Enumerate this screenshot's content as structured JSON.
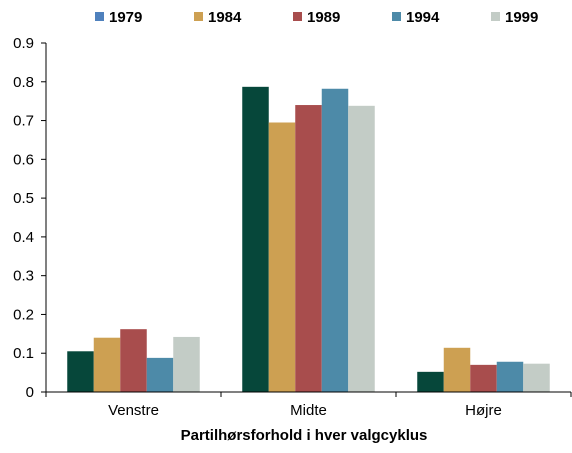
{
  "chart_data": {
    "type": "bar",
    "title": "",
    "xlabel": "Partilhørsforhold i hver valgcyklus",
    "ylabel": "",
    "ylim": [
      0,
      0.9
    ],
    "yticks": [
      "0",
      "0.1",
      "0.2",
      "0.3",
      "0.4",
      "0.5",
      "0.6",
      "0.7",
      "0.8",
      "0.9"
    ],
    "grid": false,
    "legend_position": "top",
    "categories": [
      "Venstre",
      "Midte",
      "Højre"
    ],
    "legend": [
      {
        "name": "1979",
        "color": "#4f81bd"
      },
      {
        "name": "1984",
        "color": "#cda052"
      },
      {
        "name": "1989",
        "color": "#a84d4d"
      },
      {
        "name": "1994",
        "color": "#4d8aa8"
      },
      {
        "name": "1999",
        "color": "#c3ccc6"
      }
    ],
    "series": [
      {
        "name": "1979",
        "color": "#06473a",
        "values": [
          0.105,
          0.787,
          0.052
        ]
      },
      {
        "name": "1984",
        "color": "#cda052",
        "values": [
          0.14,
          0.695,
          0.114
        ]
      },
      {
        "name": "1989",
        "color": "#a84d4d",
        "values": [
          0.162,
          0.74,
          0.07
        ]
      },
      {
        "name": "1994",
        "color": "#4d8aa8",
        "values": [
          0.088,
          0.782,
          0.078
        ]
      },
      {
        "name": "1999",
        "color": "#c3ccc6",
        "values": [
          0.142,
          0.738,
          0.073
        ]
      }
    ]
  }
}
